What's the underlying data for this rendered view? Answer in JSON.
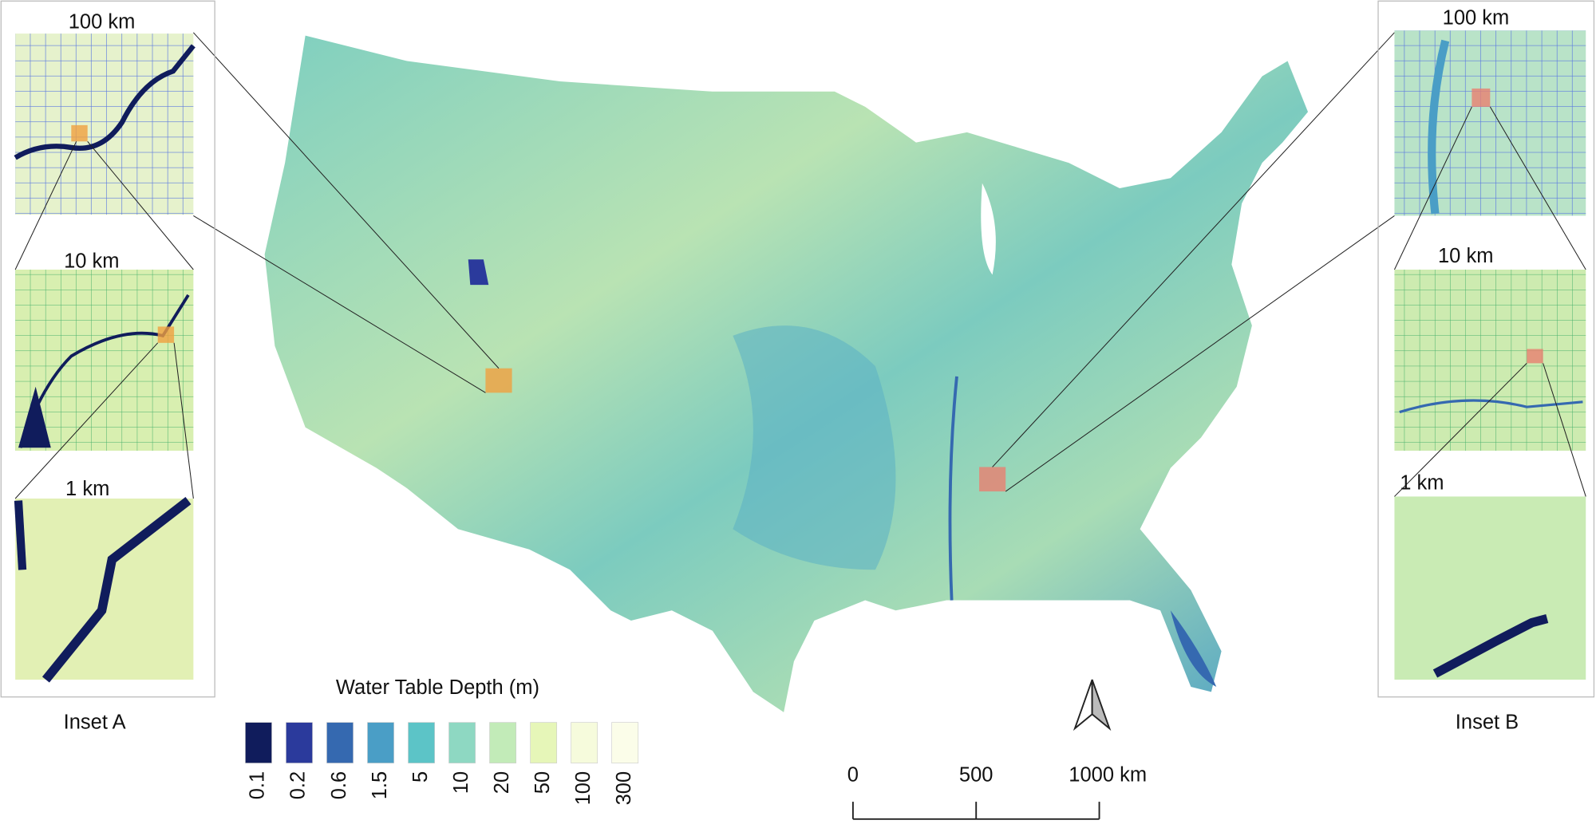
{
  "map": {
    "legend": {
      "title": "Water Table Depth (m)",
      "classes": [
        {
          "value": 0.1,
          "color": "#101c5c"
        },
        {
          "value": 0.2,
          "color": "#2b3a9c"
        },
        {
          "value": 0.6,
          "color": "#3569b0"
        },
        {
          "value": 1.5,
          "color": "#4a9ec6"
        },
        {
          "value": 5,
          "color": "#5cc4c7"
        },
        {
          "value": 10,
          "color": "#8ed8c2"
        },
        {
          "value": 20,
          "color": "#c2ebb8"
        },
        {
          "value": 50,
          "color": "#e6f6b8"
        },
        {
          "value": 100,
          "color": "#f6fbdc"
        },
        {
          "value": 300,
          "color": "#fbfde9"
        }
      ]
    },
    "scale_bar": {
      "ticks": [
        0,
        500,
        {
          "value": 1000,
          "label": "1000 km"
        }
      ]
    },
    "inset_a": {
      "label": "Inset A",
      "scales": [
        "100 km",
        "10 km",
        "1 km"
      ]
    },
    "inset_b": {
      "label": "Inset B",
      "scales": [
        "100 km",
        "10 km",
        "1 km"
      ]
    }
  }
}
